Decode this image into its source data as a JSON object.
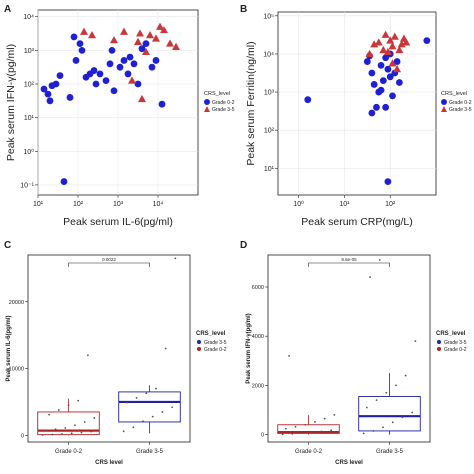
{
  "figure": {
    "panel_labels": [
      "A",
      "B",
      "C",
      "D"
    ]
  },
  "colors": {
    "grade_0_2": "#1f1fd6",
    "grade_3_5": "#c8373a",
    "box_red": "#b22222",
    "box_blue": "#1f1fa8",
    "axis": "#222222",
    "grid": "#e6e6e6"
  },
  "chart_data": [
    {
      "panel": "A",
      "type": "scatter",
      "xlabel": "Peak serum IL-6(pg/ml)",
      "ylabel": "Peak serum IFN-γ(pg/ml)",
      "xscale": "log",
      "yscale": "log",
      "xlim": [
        1,
        5
      ],
      "ylim": [
        -1.3,
        4.2
      ],
      "x_ticks": [
        "10¹",
        "10²",
        "10³",
        "10⁴"
      ],
      "y_ticks": [
        "10⁻¹",
        "10⁰",
        "10¹",
        "10²",
        "10³",
        "10⁴"
      ],
      "grid": true,
      "legend": {
        "title": "CRS_level",
        "position": "right",
        "entries": [
          "Grade 0-2",
          "Grade 3-5"
        ]
      },
      "series": [
        {
          "name": "Grade 0-2",
          "marker": "circle",
          "points": [
            [
              1.15,
              1.85
            ],
            [
              1.25,
              1.7
            ],
            [
              1.3,
              1.5
            ],
            [
              1.35,
              1.95
            ],
            [
              1.45,
              2.0
            ],
            [
              1.55,
              2.25
            ],
            [
              1.65,
              -0.9
            ],
            [
              1.8,
              1.6
            ],
            [
              1.9,
              3.4
            ],
            [
              1.95,
              2.7
            ],
            [
              2.05,
              3.2
            ],
            [
              2.1,
              3.0
            ],
            [
              2.2,
              2.2
            ],
            [
              2.3,
              2.3
            ],
            [
              2.4,
              2.4
            ],
            [
              2.45,
              2.0
            ],
            [
              2.55,
              2.3
            ],
            [
              2.7,
              2.1
            ],
            [
              2.8,
              2.6
            ],
            [
              2.9,
              1.8
            ],
            [
              3.05,
              2.5
            ],
            [
              3.15,
              2.7
            ],
            [
              3.25,
              2.3
            ],
            [
              3.4,
              2.6
            ],
            [
              3.5,
              2.0
            ],
            [
              3.6,
              3.05
            ],
            [
              3.7,
              3.2
            ],
            [
              3.85,
              2.5
            ],
            [
              3.95,
              2.7
            ],
            [
              4.1,
              1.4
            ],
            [
              3.3,
              2.8
            ],
            [
              2.85,
              3.0
            ]
          ]
        },
        {
          "name": "Grade 3-5",
          "marker": "triangle",
          "points": [
            [
              2.15,
              3.55
            ],
            [
              2.35,
              3.45
            ],
            [
              2.9,
              3.3
            ],
            [
              3.15,
              3.55
            ],
            [
              3.35,
              2.1
            ],
            [
              3.55,
              3.5
            ],
            [
              3.6,
              1.55
            ],
            [
              3.7,
              2.95
            ],
            [
              3.8,
              3.45
            ],
            [
              3.95,
              3.35
            ],
            [
              4.05,
              3.7
            ],
            [
              4.15,
              3.6
            ],
            [
              4.3,
              3.2
            ],
            [
              4.45,
              3.1
            ],
            [
              3.5,
              3.25
            ]
          ]
        }
      ]
    },
    {
      "panel": "B",
      "type": "scatter",
      "xlabel": "Peak serum CRP(mg/L)",
      "ylabel": "Peak serum Ferritin(ng/ml)",
      "xscale": "log",
      "yscale": "log",
      "xlim": [
        -0.45,
        3.0
      ],
      "ylim": [
        0.3,
        5.1
      ],
      "x_ticks": [
        "10⁰",
        "10¹",
        "10²"
      ],
      "y_ticks": [
        "10¹",
        "10²",
        "10³",
        "10⁴",
        "10⁵"
      ],
      "grid": true,
      "legend": {
        "title": "CRS_level",
        "position": "right",
        "entries": [
          "Grade 0-2",
          "Grade 3-5"
        ]
      },
      "series": [
        {
          "name": "Grade 0-2",
          "marker": "circle",
          "points": [
            [
              0.2,
              2.8
            ],
            [
              1.5,
              3.8
            ],
            [
              1.6,
              3.5
            ],
            [
              1.65,
              3.2
            ],
            [
              1.7,
              2.6
            ],
            [
              1.75,
              3.0
            ],
            [
              1.8,
              3.7
            ],
            [
              1.85,
              3.3
            ],
            [
              1.9,
              3.9
            ],
            [
              1.95,
              3.6
            ],
            [
              2.0,
              3.4
            ],
            [
              2.05,
              2.9
            ],
            [
              2.1,
              3.5
            ],
            [
              2.15,
              3.8
            ],
            [
              2.2,
              3.25
            ],
            [
              1.55,
              3.95
            ],
            [
              1.6,
              2.45
            ],
            [
              1.95,
              0.65
            ],
            [
              1.9,
              2.6
            ],
            [
              2.8,
              4.35
            ],
            [
              2.0,
              4.0
            ],
            [
              1.8,
              3.05
            ]
          ]
        },
        {
          "name": "Grade 3-5",
          "marker": "triangle",
          "points": [
            [
              1.55,
              4.0
            ],
            [
              1.65,
              4.25
            ],
            [
              1.75,
              4.3
            ],
            [
              1.85,
              4.1
            ],
            [
              1.9,
              4.5
            ],
            [
              2.0,
              4.35
            ],
            [
              2.05,
              4.2
            ],
            [
              2.1,
              4.45
            ],
            [
              2.2,
              4.1
            ],
            [
              2.3,
              4.4
            ],
            [
              2.35,
              4.3
            ],
            [
              2.15,
              3.6
            ],
            [
              2.25,
              4.25
            ],
            [
              1.95,
              4.05
            ],
            [
              2.05,
              3.75
            ]
          ]
        }
      ]
    },
    {
      "panel": "C",
      "type": "box",
      "xlabel": "CRS level",
      "ylabel": "Peak serum IL-6(pg/ml)",
      "ylim": [
        -1000,
        27000
      ],
      "y_ticks": [
        0,
        10000,
        20000
      ],
      "categories": [
        "Grade 0-2",
        "Grade 3-5"
      ],
      "comparison_pvalue": "0.0022",
      "legend": {
        "title": "CRS_level",
        "position": "right",
        "entries": [
          "Grade 3-5",
          "Grade 0-2"
        ]
      },
      "boxes": [
        {
          "group": "Grade 0-2",
          "q1": 100,
          "median": 700,
          "q3": 3500,
          "whisker_low": 0,
          "whisker_high": 5500,
          "outliers": []
        },
        {
          "group": "Grade 3-5",
          "q1": 2000,
          "median": 5000,
          "q3": 6500,
          "whisker_low": 300,
          "whisker_high": 7500,
          "outliers": [
            26500
          ]
        }
      ],
      "points": [
        {
          "group": "Grade 0-2",
          "values": [
            50,
            120,
            200,
            300,
            400,
            550,
            700,
            900,
            1100,
            1500,
            2000,
            2600,
            3100,
            3800,
            4500,
            5200,
            12000
          ]
        },
        {
          "group": "Grade 3-5",
          "values": [
            600,
            1200,
            2100,
            2800,
            3500,
            4200,
            4900,
            5600,
            6300,
            7000,
            13000,
            26500
          ]
        }
      ]
    },
    {
      "panel": "D",
      "type": "box",
      "xlabel": "CRS level",
      "ylabel": "Peak serum IFN-γ(pg/ml)",
      "ylim": [
        -300,
        7300
      ],
      "y_ticks": [
        0,
        2000,
        4000,
        6000
      ],
      "categories": [
        "Grade 0-2",
        "Grade 3-5"
      ],
      "comparison_pvalue": "9.6e-05",
      "legend": {
        "title": "CRS_level",
        "position": "right",
        "entries": [
          "Grade 3-5",
          "Grade 0-2"
        ]
      },
      "boxes": [
        {
          "group": "Grade 0-2",
          "q1": 50,
          "median": 100,
          "q3": 400,
          "whisker_low": 0,
          "whisker_high": 800,
          "outliers": []
        },
        {
          "group": "Grade 3-5",
          "q1": 150,
          "median": 750,
          "q3": 1550,
          "whisker_low": 0,
          "whisker_high": 2500,
          "outliers": [
            7100
          ]
        }
      ],
      "points": [
        {
          "group": "Grade 0-2",
          "values": [
            10,
            30,
            60,
            90,
            130,
            180,
            240,
            320,
            400,
            520,
            650,
            800,
            3200
          ]
        },
        {
          "group": "Grade 3-5",
          "values": [
            50,
            150,
            300,
            500,
            700,
            900,
            1100,
            1400,
            1700,
            2000,
            2400,
            3800,
            6400,
            7100
          ]
        }
      ]
    }
  ]
}
